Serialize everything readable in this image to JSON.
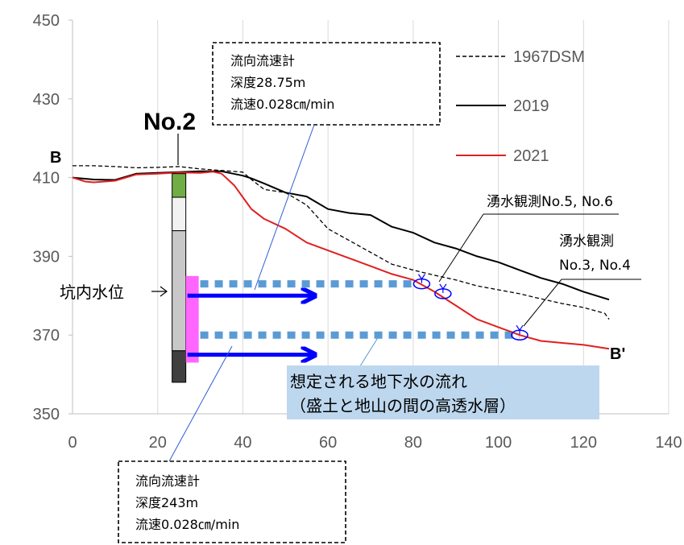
{
  "chart_data": {
    "type": "line",
    "xlim": [
      0,
      140
    ],
    "ylim": [
      350,
      450
    ],
    "x_ticks": [
      0,
      20,
      40,
      60,
      80,
      100,
      120,
      140
    ],
    "y_ticks": [
      350,
      370,
      390,
      410,
      430,
      450
    ],
    "grid": "vertical",
    "legend_position": "top-right",
    "colors": {
      "dsm1967": "#000000",
      "y2019": "#000000",
      "y2021": "#e02020",
      "flow_line": "#5b9bd5",
      "flow_arrow": "#0000ff",
      "spring_marker": "#0000ff",
      "callout_box": "#bdd7ee",
      "screen_pink": "#ff66ff",
      "core_green": "#70ad47"
    },
    "series": [
      {
        "name": "1967DSM",
        "style": "dashed",
        "x": [
          0,
          5,
          10,
          15,
          20,
          25,
          30,
          35,
          40,
          42,
          45,
          50,
          55,
          60,
          65,
          70,
          75,
          80,
          85,
          90,
          95,
          100,
          105,
          110,
          115,
          120,
          125,
          126
        ],
        "y": [
          413,
          413,
          412.8,
          412.5,
          412.6,
          412.8,
          412.2,
          411.8,
          411.4,
          409.5,
          407,
          406.2,
          403,
          397,
          394,
          391,
          388,
          386.5,
          385.2,
          384,
          382.5,
          381.5,
          380.5,
          379.2,
          378,
          377,
          375.5,
          374
        ]
      },
      {
        "name": "2019",
        "style": "solid",
        "x": [
          0,
          5,
          10,
          15,
          20,
          25,
          30,
          35,
          40,
          42,
          45,
          50,
          55,
          60,
          65,
          70,
          75,
          80,
          85,
          90,
          95,
          100,
          105,
          110,
          115,
          120,
          126
        ],
        "y": [
          410,
          409.5,
          409.4,
          411,
          411.2,
          411.4,
          411.6,
          411.6,
          410.5,
          409.8,
          408.5,
          406.2,
          405.2,
          402,
          401,
          400.5,
          397.5,
          396,
          393.5,
          392,
          390,
          388.5,
          386.5,
          384.5,
          383,
          381,
          379
        ]
      },
      {
        "name": "2021",
        "style": "solid",
        "x": [
          0,
          3,
          5,
          10,
          15,
          20,
          25,
          30,
          33,
          35,
          38,
          40,
          42,
          45,
          50,
          55,
          60,
          65,
          70,
          75,
          80,
          85,
          90,
          95,
          100,
          105,
          110,
          115,
          120,
          126
        ],
        "y": [
          410,
          409,
          408.8,
          409.2,
          410.8,
          411,
          411.3,
          411.2,
          411.5,
          411,
          408,
          405,
          402,
          399.5,
          397,
          393.5,
          391.5,
          389.5,
          387.5,
          385.5,
          384,
          381,
          377.5,
          374,
          372,
          370,
          368.5,
          368,
          367.5,
          366.5
        ]
      }
    ],
    "groundwater_levels": [
      {
        "y": 383,
        "x_start": 30,
        "x_end": 81
      },
      {
        "y": 370,
        "x_start": 30,
        "x_end": 105
      }
    ],
    "flow_arrows": [
      {
        "y": 380,
        "x_start": 27,
        "x_end": 57
      },
      {
        "y": 365,
        "x_start": 27,
        "x_end": 57
      }
    ],
    "springs": [
      {
        "x": 82,
        "y": 383
      },
      {
        "x": 87,
        "y": 380.5
      },
      {
        "x": 105,
        "y": 370
      }
    ],
    "borehole": {
      "x": 25,
      "top": 411,
      "bottom": 358,
      "segments": [
        {
          "top": 411,
          "bottom": 405,
          "fill": "#70ad47"
        },
        {
          "top": 405,
          "bottom": 396.5,
          "fill": "#f2f2f2"
        },
        {
          "top": 396.5,
          "bottom": 366,
          "fill": "#c8c8c8"
        },
        {
          "top": 366,
          "bottom": 358,
          "fill": "#404040"
        }
      ],
      "screen": {
        "top": 385,
        "bottom": 363
      }
    },
    "labels": {
      "borehole_name": "No.2",
      "section_start": "B",
      "section_end": "B'",
      "water_level": "坑内水位",
      "spring_56": "湧水観測No.5, No.6",
      "spring_34_line1": "湧水観測",
      "spring_34_line2": "No.3, No.4",
      "flow_callout_line1": "想定される地下水の流れ",
      "flow_callout_line2": "（盛土と地山の間の高透水層）",
      "meter_upper": [
        "流向流速計",
        "深度28.75m",
        "流速0.028㎝/min"
      ],
      "meter_lower": [
        "流向流速計",
        "深度243m",
        "流速0.028㎝/min"
      ]
    }
  }
}
